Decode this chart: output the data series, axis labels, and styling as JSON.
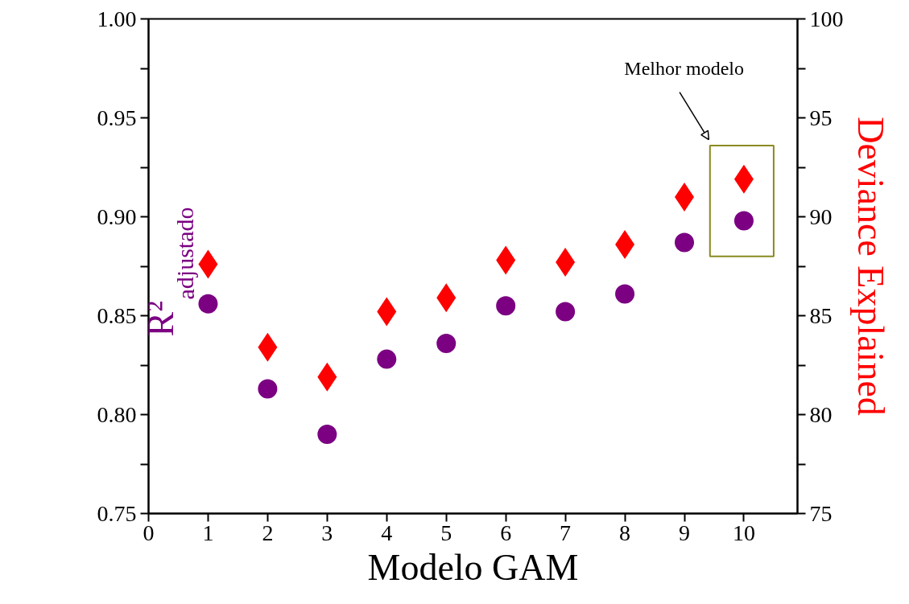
{
  "chart_data": {
    "type": "scatter",
    "xlabel": "Modelo GAM",
    "ylabel": "R²$_{adjustado}$",
    "y2label": "Deviance Explained",
    "x": [
      1,
      2,
      3,
      4,
      5,
      6,
      7,
      8,
      9,
      10
    ],
    "series": [
      {
        "color": "#7b0082",
        "marker": "circle",
        "values": [
          0.856,
          0.813,
          0.79,
          0.828,
          0.836,
          0.855,
          0.852,
          0.861,
          0.887,
          0.898
        ]
      },
      {
        "color": "#ff0000",
        "marker": "diamond",
        "axis": "y2",
        "values": [
          87.6,
          83.4,
          81.9,
          85.2,
          85.9,
          87.8,
          87.7,
          88.6,
          91.0,
          91.9
        ]
      }
    ],
    "xlim": [
      0,
      10.9
    ],
    "xticks": [
      0,
      1,
      2,
      3,
      4,
      5,
      6,
      7,
      8,
      9,
      10
    ],
    "ylim": [
      0.75,
      1.0
    ],
    "yticks": [
      {
        "value": 0.75,
        "label": "0.75"
      },
      {
        "value": 0.775,
        "label": null
      },
      {
        "value": 0.8,
        "label": "0.80"
      },
      {
        "value": 0.825,
        "label": null
      },
      {
        "value": 0.85,
        "label": "0.85"
      },
      {
        "value": 0.875,
        "label": null
      },
      {
        "value": 0.9,
        "label": "0.90"
      },
      {
        "value": 0.925,
        "label": null
      },
      {
        "value": 0.95,
        "label": "0.95"
      },
      {
        "value": 0.975,
        "label": null
      },
      {
        "value": 1.0,
        "label": "1.00"
      }
    ],
    "y2lim": [
      75,
      100
    ],
    "y2ticks": [
      75,
      {
        "value": 77.5,
        "label": null
      },
      80,
      {
        "value": 82.5,
        "label": null
      },
      85,
      {
        "value": 87.5,
        "label": null
      },
      90,
      {
        "value": 92.5,
        "label": null
      },
      95,
      {
        "value": 97.5,
        "label": null
      },
      100
    ],
    "annotations": [
      "Melhor modelo"
    ],
    "grid": false
  }
}
